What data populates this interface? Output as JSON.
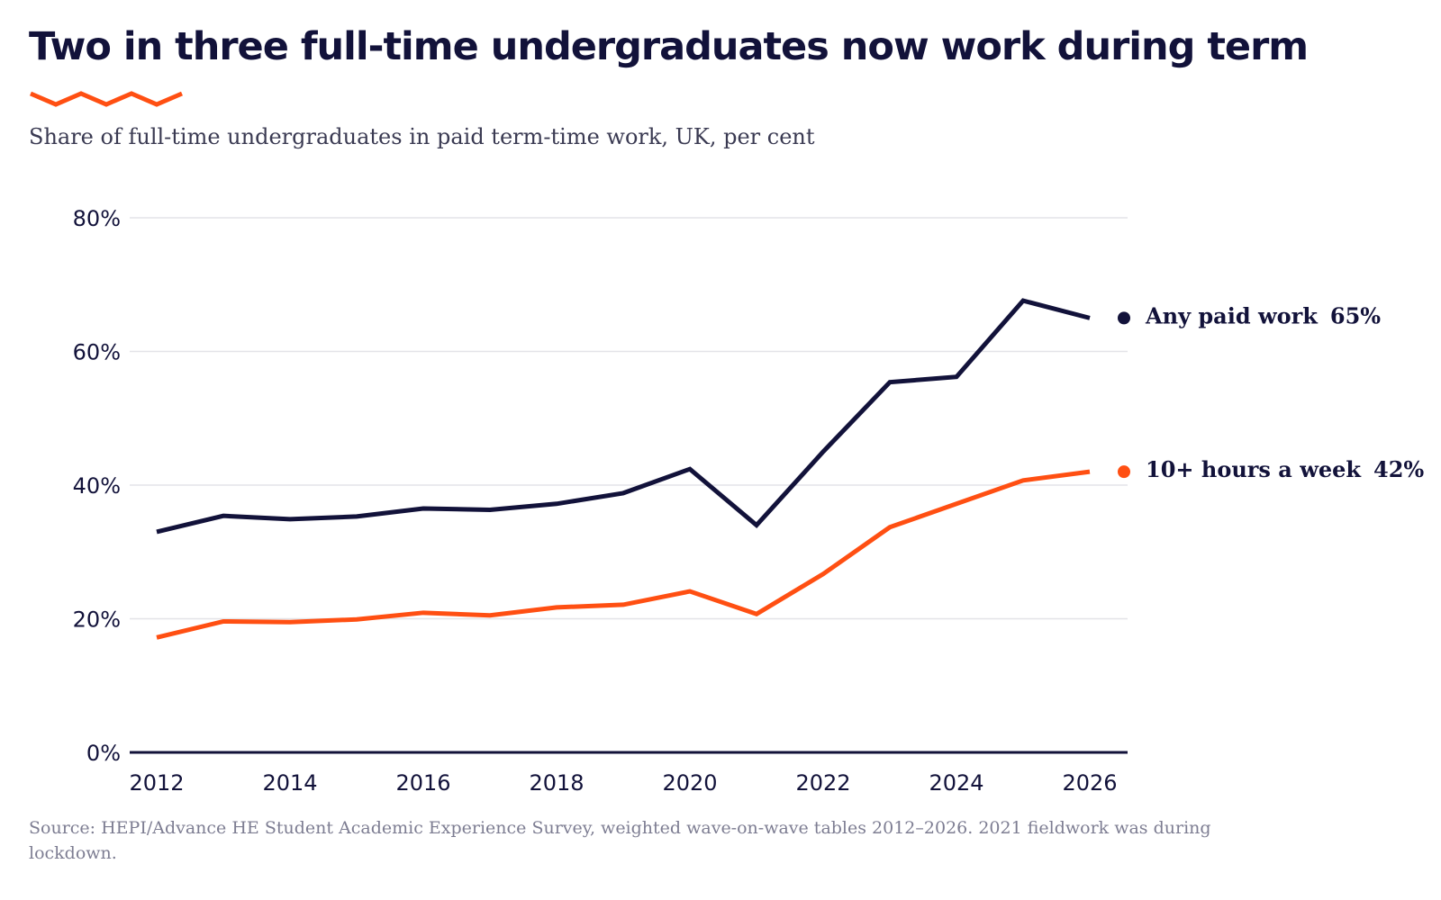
{
  "title": "Two in three full-time undergraduates now work during term",
  "subtitle": "Share of full-time undergraduates in paid term-time work, UK, per cent",
  "source": "Source: HEPI/Advance HE Student Academic Experience Survey, weighted wave-on-wave tables 2012–2026. 2021 fieldwork was during lockdown.",
  "colors": {
    "accent": "#ff4f12",
    "navy": "#12123a",
    "grid": "#e3e3e8",
    "muted": "#7d7d92"
  },
  "chart_data": {
    "type": "line",
    "x": [
      2012,
      2013,
      2014,
      2015,
      2016,
      2017,
      2018,
      2019,
      2020,
      2021,
      2022,
      2023,
      2024,
      2025,
      2026
    ],
    "xticks": [
      2012,
      2014,
      2016,
      2018,
      2020,
      2022,
      2024,
      2026
    ],
    "xtick_labels": [
      "2012",
      "2014",
      "2016",
      "2018",
      "2020",
      "2022",
      "2024",
      "2026"
    ],
    "xlim": [
      2012,
      2026
    ],
    "ylim": [
      0,
      80
    ],
    "yticks": [
      0,
      20,
      40,
      60,
      80
    ],
    "ytick_labels": [
      "0%",
      "20%",
      "40%",
      "60%",
      "80%"
    ],
    "grid": true,
    "series": [
      {
        "name": "Any paid work",
        "end_label": "65%",
        "color": "#12123a",
        "values": [
          33.0,
          35.4,
          34.9,
          35.3,
          36.5,
          36.3,
          37.2,
          38.8,
          42.4,
          34.0,
          45.0,
          55.4,
          56.2,
          67.6,
          65.0
        ]
      },
      {
        "name": "10+ hours a week",
        "end_label": "42%",
        "color": "#ff4f12",
        "values": [
          17.2,
          19.6,
          19.5,
          19.9,
          20.9,
          20.5,
          21.7,
          22.1,
          24.1,
          20.7,
          26.7,
          33.7,
          37.2,
          40.7,
          42.0
        ]
      }
    ]
  }
}
